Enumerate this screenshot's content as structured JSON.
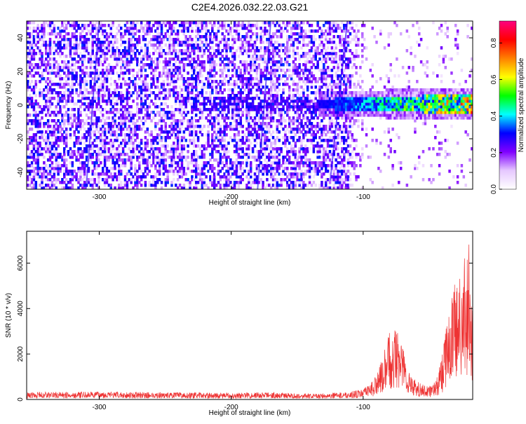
{
  "figure_title": "C2E4.2026.032.22.03.G21",
  "chart_data": [
    {
      "type": "heatmap",
      "title": "C2E4.2026.032.22.03.G21",
      "xlabel": "Height of straight line (km)",
      "ylabel": "Frequency (Hz)",
      "xlim": [
        -355,
        -17
      ],
      "ylim": [
        -50,
        50
      ],
      "x_ticks": [
        -300,
        -200,
        -100
      ],
      "x_tick_labels": [
        "-300",
        "-200",
        "-100"
      ],
      "y_ticks": [
        -40,
        -20,
        0,
        20,
        40
      ],
      "y_tick_labels": [
        "-40",
        "-20",
        "0",
        "20",
        "40"
      ],
      "colorbar": {
        "label": "Normalized spectral amplitude",
        "range": [
          0,
          0.92
        ],
        "ticks": [
          0,
          0.2,
          0.4,
          0.6,
          0.8
        ],
        "tick_labels": [
          "0.0",
          "0.2",
          "0.4",
          "0.6",
          "0.8"
        ],
        "colormap": [
          "#ffffff",
          "#e6c8ff",
          "#8000ff",
          "#0000ff",
          "#00ffff",
          "#00ff00",
          "#ffff00",
          "#ff8000",
          "#ff0000",
          "#ff0080"
        ]
      },
      "band_center_hz": 0,
      "grid": false
    },
    {
      "type": "line",
      "xlabel": "Height of straight line (km)",
      "ylabel": "SNR (10 * v/v)",
      "xlim": [
        -355,
        -17
      ],
      "ylim": [
        0,
        7400
      ],
      "x_ticks": [
        -300,
        -200,
        -100
      ],
      "x_tick_labels": [
        "-300",
        "-200",
        "-100"
      ],
      "y_ticks": [
        0,
        2000,
        4000,
        6000
      ],
      "y_tick_labels": [
        "0",
        "2000",
        "4000",
        "6000"
      ],
      "color": "#ee3333",
      "x": [
        -355,
        -340,
        -320,
        -300,
        -280,
        -260,
        -240,
        -220,
        -200,
        -190,
        -180,
        -170,
        -160,
        -150,
        -140,
        -130,
        -120,
        -110,
        -100,
        -95,
        -90,
        -85,
        -80,
        -75,
        -70,
        -65,
        -60,
        -55,
        -50,
        -45,
        -40,
        -35,
        -30,
        -25,
        -20,
        -17
      ],
      "values": [
        320,
        340,
        330,
        350,
        330,
        320,
        310,
        300,
        290,
        300,
        320,
        330,
        300,
        260,
        250,
        270,
        300,
        350,
        460,
        700,
        1100,
        1900,
        3000,
        3300,
        2400,
        1300,
        800,
        700,
        600,
        800,
        2000,
        4200,
        5200,
        5800,
        7000,
        4800
      ],
      "grid": false
    }
  ]
}
